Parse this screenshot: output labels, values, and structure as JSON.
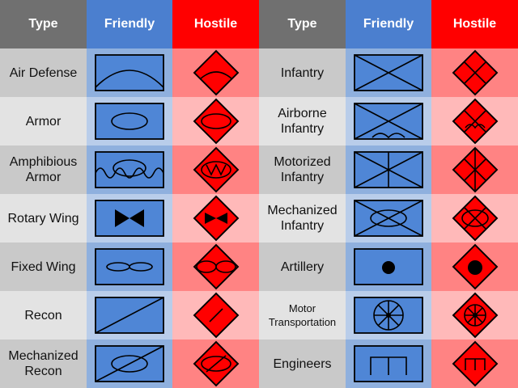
{
  "headers": [
    {
      "label": "Type",
      "kind": "type"
    },
    {
      "label": "Friendly",
      "kind": "friendly"
    },
    {
      "label": "Hostile",
      "kind": "hostile"
    },
    {
      "label": "Type",
      "kind": "type"
    },
    {
      "label": "Friendly",
      "kind": "friendly"
    },
    {
      "label": "Hostile",
      "kind": "hostile"
    }
  ],
  "colors": {
    "friendly_symbol_fill": "#4f86d6",
    "hostile_symbol_fill": "#ff0000",
    "symbol_stroke": "#000000"
  },
  "left_rows": [
    {
      "label": "Air Defense",
      "symbol": "air-defense"
    },
    {
      "label": "Armor",
      "symbol": "armor"
    },
    {
      "label": "Amphibious Armor",
      "symbol": "amphibious-armor"
    },
    {
      "label": "Rotary Wing",
      "symbol": "rotary-wing"
    },
    {
      "label": "Fixed Wing",
      "symbol": "fixed-wing"
    },
    {
      "label": "Recon",
      "symbol": "recon"
    },
    {
      "label": "Mechanized Recon",
      "symbol": "mechanized-recon"
    }
  ],
  "right_rows": [
    {
      "label": "Infantry",
      "symbol": "infantry"
    },
    {
      "label": "Airborne Infantry",
      "symbol": "airborne-infantry"
    },
    {
      "label": "Motorized Infantry",
      "symbol": "motorized-infantry"
    },
    {
      "label": "Mechanized Infantry",
      "symbol": "mechanized-infantry"
    },
    {
      "label": "Artillery",
      "symbol": "artillery"
    },
    {
      "label": "Motor Transportation",
      "symbol": "motor-transportation",
      "small": true
    },
    {
      "label": "Engineers",
      "symbol": "engineers"
    }
  ]
}
